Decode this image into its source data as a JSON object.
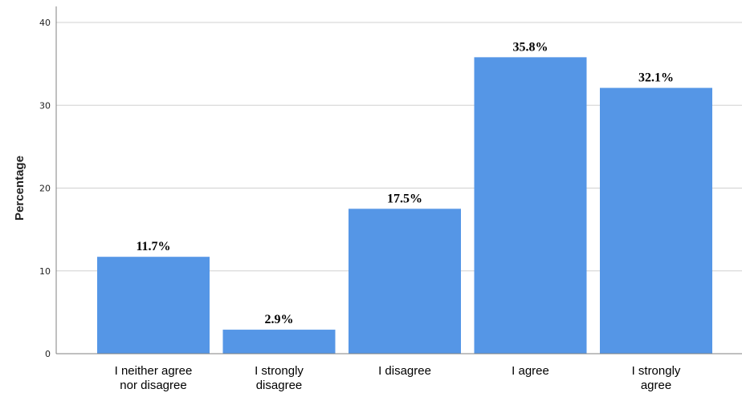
{
  "chart_data": {
    "type": "bar",
    "categories": [
      [
        "I neither agree",
        "nor disagree"
      ],
      [
        "I strongly",
        "disagree"
      ],
      [
        "I disagree"
      ],
      [
        "I agree"
      ],
      [
        "I strongly",
        "agree"
      ]
    ],
    "values": [
      11.7,
      2.9,
      17.5,
      35.8,
      32.1
    ],
    "data_labels": [
      "11.7%",
      "2.9%",
      "17.5%",
      "35.8%",
      "32.1%"
    ],
    "title": "",
    "xlabel": "",
    "ylabel": "Percentage",
    "ylim": [
      0,
      40
    ],
    "yticks": [
      "0",
      "10",
      "20",
      "30",
      "40"
    ],
    "grid": "horizontal",
    "colors": {
      "bar": "#5596e6",
      "grid": "#d0d0d0",
      "axis": "#808080"
    }
  }
}
